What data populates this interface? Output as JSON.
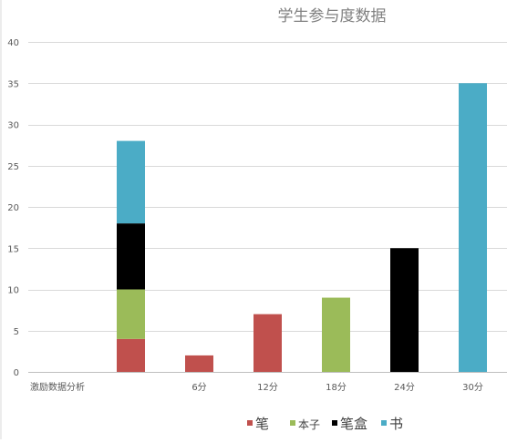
{
  "chart_data": {
    "type": "bar",
    "stacked": true,
    "title": "学生参与度数据",
    "categories": [
      "激励数据分析",
      "",
      "6分",
      "12分",
      "18分",
      "24分",
      "30分"
    ],
    "ylim": [
      0,
      40
    ],
    "yticks": [
      0,
      5,
      10,
      15,
      20,
      25,
      30,
      35,
      40
    ],
    "grid": true,
    "legend_position": "bottom",
    "series": [
      {
        "name": "笔",
        "color": "#c0504d",
        "values": [
          0,
          4,
          2,
          7,
          0,
          0,
          0
        ]
      },
      {
        "name": "本子",
        "color": "#9bbb59",
        "values": [
          0,
          6,
          0,
          0,
          9,
          0,
          0
        ]
      },
      {
        "name": "笔盒",
        "color": "#000000",
        "values": [
          0,
          8,
          0,
          0,
          0,
          15,
          0
        ]
      },
      {
        "name": "书",
        "color": "#4bacc6",
        "values": [
          0,
          10,
          0,
          0,
          0,
          0,
          35
        ]
      }
    ]
  }
}
